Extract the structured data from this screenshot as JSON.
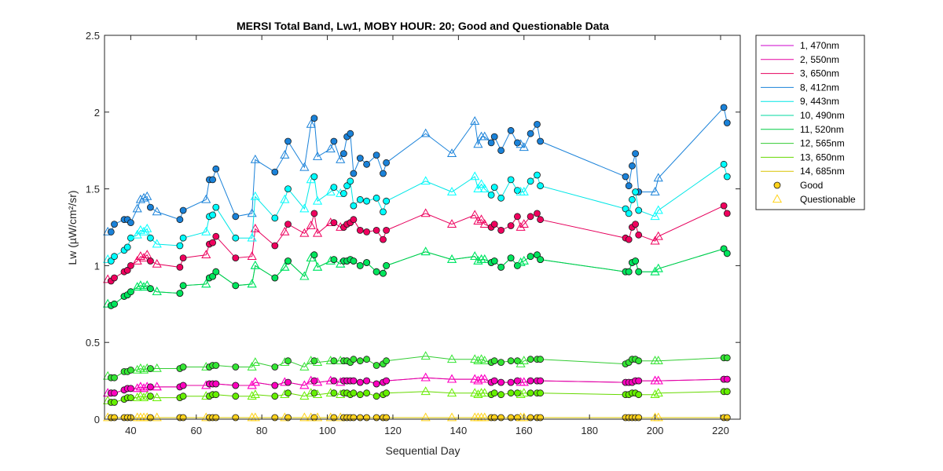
{
  "chart_data": {
    "type": "line",
    "title": "MERSI Total Band,  Lw1, MOBY HOUR: 20;  Good and Questionable Data",
    "xlabel": "Sequential Day",
    "ylabel": "Lw (µW/cm²/sr)",
    "xlim": [
      32,
      226
    ],
    "ylim": [
      0,
      2.5
    ],
    "xticks": [
      40,
      60,
      80,
      100,
      120,
      140,
      160,
      180,
      200,
      220
    ],
    "yticks": [
      0,
      0.5,
      1,
      1.5,
      2,
      2.5
    ],
    "ytick_labels": [
      "0",
      "0.5",
      "1",
      "1.5",
      "2",
      "2.5"
    ],
    "legend_position": "outside-top-right",
    "x": [
      33,
      34,
      35,
      38,
      39,
      40,
      42,
      43,
      44,
      45,
      46,
      48,
      55,
      56,
      63,
      64,
      65,
      66,
      72,
      77,
      78,
      84,
      87,
      88,
      93,
      95,
      96,
      97,
      101,
      102,
      104,
      105,
      106,
      107,
      108,
      110,
      112,
      115,
      117,
      118,
      130,
      138,
      145,
      146,
      147,
      148,
      150,
      151,
      153,
      156,
      158,
      159,
      160,
      162,
      164,
      165,
      191,
      192,
      193,
      194,
      195,
      200,
      201,
      221,
      222
    ],
    "quality": [
      "Q",
      "G",
      "G",
      "G",
      "G",
      "G",
      "Q",
      "Q",
      "Q",
      "Q",
      "G",
      "Q",
      "G",
      "G",
      "Q",
      "G",
      "G",
      "G",
      "G",
      "Q",
      "Q",
      "G",
      "Q",
      "G",
      "Q",
      "Q",
      "G",
      "Q",
      "Q",
      "G",
      "Q",
      "G",
      "G",
      "G",
      "G",
      "G",
      "G",
      "G",
      "G",
      "G",
      "Q",
      "Q",
      "Q",
      "Q",
      "Q",
      "Q",
      "G",
      "G",
      "G",
      "G",
      "G",
      "Q",
      "Q",
      "G",
      "G",
      "G",
      "G",
      "G",
      "G",
      "G",
      "G",
      "Q",
      "Q",
      "G",
      "G"
    ],
    "series": [
      {
        "name": "1, 470nm",
        "color": "#cc00cc",
        "marker": "#ff10ff",
        "values": [
          0.17,
          0.17,
          0.17,
          0.19,
          0.2,
          0.2,
          0.2,
          0.21,
          0.2,
          0.21,
          0.21,
          0.21,
          0.21,
          0.22,
          0.22,
          0.23,
          0.23,
          0.23,
          0.22,
          0.22,
          0.24,
          0.22,
          0.24,
          0.24,
          0.22,
          0.25,
          0.25,
          0.24,
          0.25,
          0.25,
          0.24,
          0.25,
          0.25,
          0.25,
          0.25,
          0.24,
          0.25,
          0.23,
          0.24,
          0.25,
          0.27,
          0.26,
          0.26,
          0.25,
          0.26,
          0.26,
          0.24,
          0.25,
          0.24,
          0.24,
          0.25,
          0.24,
          0.24,
          0.25,
          0.25,
          0.25,
          0.24,
          0.24,
          0.24,
          0.25,
          0.25,
          0.25,
          0.25,
          0.26,
          0.26
        ]
      },
      {
        "name": "2, 550nm",
        "color": "#e600a0",
        "marker": "#ff00bf",
        "values": [
          0.17,
          0.17,
          0.17,
          0.19,
          0.2,
          0.2,
          0.2,
          0.21,
          0.2,
          0.21,
          0.21,
          0.21,
          0.21,
          0.22,
          0.22,
          0.23,
          0.23,
          0.23,
          0.22,
          0.22,
          0.24,
          0.22,
          0.24,
          0.24,
          0.22,
          0.25,
          0.25,
          0.24,
          0.25,
          0.25,
          0.24,
          0.25,
          0.25,
          0.25,
          0.25,
          0.24,
          0.25,
          0.23,
          0.24,
          0.25,
          0.27,
          0.26,
          0.26,
          0.25,
          0.26,
          0.26,
          0.24,
          0.25,
          0.24,
          0.24,
          0.25,
          0.24,
          0.24,
          0.25,
          0.25,
          0.25,
          0.24,
          0.24,
          0.24,
          0.25,
          0.25,
          0.25,
          0.25,
          0.26,
          0.26
        ]
      },
      {
        "name": "3, 650nm",
        "color": "#e6005c",
        "marker": "#f0005e",
        "values": [
          0.91,
          0.9,
          0.92,
          0.96,
          0.97,
          1.0,
          1.03,
          1.06,
          1.05,
          1.07,
          1.03,
          1.01,
          0.99,
          1.05,
          1.07,
          1.14,
          1.15,
          1.19,
          1.05,
          1.06,
          1.24,
          1.13,
          1.22,
          1.27,
          1.21,
          1.26,
          1.34,
          1.21,
          1.28,
          1.28,
          1.25,
          1.25,
          1.27,
          1.28,
          1.3,
          1.23,
          1.22,
          1.23,
          1.17,
          1.23,
          1.34,
          1.27,
          1.33,
          1.29,
          1.3,
          1.27,
          1.25,
          1.27,
          1.23,
          1.26,
          1.32,
          1.25,
          1.27,
          1.32,
          1.34,
          1.3,
          1.18,
          1.17,
          1.25,
          1.27,
          1.2,
          1.16,
          1.19,
          1.39,
          1.34
        ]
      },
      {
        "name": "8, 412nm",
        "color": "#1a82d9",
        "marker": "#1a82d9",
        "values": [
          1.22,
          1.22,
          1.27,
          1.3,
          1.3,
          1.28,
          1.37,
          1.43,
          1.44,
          1.45,
          1.38,
          1.35,
          1.3,
          1.36,
          1.43,
          1.56,
          1.56,
          1.63,
          1.32,
          1.34,
          1.69,
          1.61,
          1.72,
          1.81,
          1.64,
          1.92,
          1.96,
          1.71,
          1.76,
          1.81,
          1.69,
          1.73,
          1.84,
          1.86,
          1.6,
          1.7,
          1.66,
          1.72,
          1.6,
          1.67,
          1.86,
          1.73,
          1.94,
          1.79,
          1.84,
          1.84,
          1.8,
          1.84,
          1.75,
          1.88,
          1.8,
          1.79,
          1.77,
          1.86,
          1.92,
          1.81,
          1.58,
          1.52,
          1.65,
          1.73,
          1.48,
          1.48,
          1.57,
          2.03,
          1.93
        ]
      },
      {
        "name": "9, 443nm",
        "color": "#00e6e6",
        "marker": "#00ffff",
        "values": [
          1.04,
          1.03,
          1.06,
          1.1,
          1.12,
          1.18,
          1.2,
          1.23,
          1.22,
          1.24,
          1.18,
          1.14,
          1.13,
          1.18,
          1.22,
          1.32,
          1.33,
          1.38,
          1.18,
          1.18,
          1.45,
          1.31,
          1.43,
          1.5,
          1.37,
          1.56,
          1.58,
          1.42,
          1.48,
          1.51,
          1.47,
          1.47,
          1.52,
          1.55,
          1.39,
          1.43,
          1.42,
          1.44,
          1.35,
          1.42,
          1.55,
          1.48,
          1.58,
          1.5,
          1.53,
          1.5,
          1.46,
          1.51,
          1.44,
          1.56,
          1.49,
          1.48,
          1.48,
          1.55,
          1.59,
          1.52,
          1.37,
          1.34,
          1.43,
          1.48,
          1.36,
          1.32,
          1.36,
          1.66,
          1.58
        ]
      },
      {
        "name": "10, 490nm",
        "color": "#00d9a0",
        "marker": "#00e6a8",
        "values": [
          0.75,
          0.74,
          0.75,
          0.8,
          0.81,
          0.83,
          0.86,
          0.87,
          0.86,
          0.87,
          0.85,
          0.83,
          0.82,
          0.87,
          0.88,
          0.92,
          0.93,
          0.96,
          0.87,
          0.88,
          1.0,
          0.92,
          0.99,
          1.03,
          0.93,
          1.05,
          1.07,
          0.99,
          1.03,
          1.04,
          1.01,
          1.03,
          1.03,
          1.04,
          1.03,
          1.0,
          1.02,
          0.96,
          0.95,
          1.0,
          1.09,
          1.04,
          1.06,
          1.03,
          1.04,
          1.04,
          1.02,
          1.03,
          0.99,
          1.05,
          1.0,
          1.02,
          1.03,
          1.06,
          1.07,
          1.04,
          0.96,
          0.96,
          1.02,
          1.03,
          0.96,
          0.96,
          0.98,
          1.11,
          1.08
        ]
      },
      {
        "name": "11, 520nm",
        "color": "#00cc44",
        "marker": "#00e65c",
        "values": [
          0.75,
          0.74,
          0.75,
          0.8,
          0.81,
          0.83,
          0.86,
          0.87,
          0.86,
          0.87,
          0.85,
          0.83,
          0.82,
          0.87,
          0.88,
          0.92,
          0.93,
          0.96,
          0.87,
          0.88,
          1.0,
          0.92,
          0.99,
          1.03,
          0.93,
          1.05,
          1.07,
          0.99,
          1.03,
          1.04,
          1.01,
          1.03,
          1.03,
          1.04,
          1.03,
          1.0,
          1.02,
          0.96,
          0.95,
          1.0,
          1.09,
          1.04,
          1.06,
          1.03,
          1.04,
          1.04,
          1.02,
          1.03,
          0.99,
          1.05,
          1.0,
          1.02,
          1.03,
          1.06,
          1.07,
          1.04,
          0.96,
          0.96,
          1.02,
          1.03,
          0.96,
          0.96,
          0.98,
          1.11,
          1.08
        ]
      },
      {
        "name": "12, 565nm",
        "color": "#33cc33",
        "marker": "#33e633",
        "values": [
          0.28,
          0.27,
          0.27,
          0.31,
          0.31,
          0.32,
          0.32,
          0.33,
          0.32,
          0.33,
          0.33,
          0.33,
          0.33,
          0.34,
          0.34,
          0.34,
          0.35,
          0.35,
          0.34,
          0.34,
          0.37,
          0.34,
          0.37,
          0.38,
          0.34,
          0.38,
          0.38,
          0.37,
          0.38,
          0.38,
          0.38,
          0.38,
          0.38,
          0.37,
          0.39,
          0.38,
          0.39,
          0.35,
          0.36,
          0.38,
          0.41,
          0.39,
          0.39,
          0.38,
          0.39,
          0.38,
          0.37,
          0.38,
          0.37,
          0.38,
          0.38,
          0.36,
          0.38,
          0.39,
          0.39,
          0.39,
          0.36,
          0.37,
          0.39,
          0.39,
          0.38,
          0.38,
          0.38,
          0.4,
          0.4
        ]
      },
      {
        "name": "13, 650nm",
        "color": "#66d900",
        "marker": "#66f000",
        "values": [
          0.12,
          0.11,
          0.11,
          0.13,
          0.14,
          0.14,
          0.14,
          0.15,
          0.14,
          0.15,
          0.15,
          0.14,
          0.14,
          0.15,
          0.15,
          0.15,
          0.16,
          0.16,
          0.15,
          0.15,
          0.16,
          0.15,
          0.16,
          0.17,
          0.15,
          0.17,
          0.17,
          0.16,
          0.17,
          0.17,
          0.16,
          0.17,
          0.17,
          0.16,
          0.17,
          0.16,
          0.17,
          0.15,
          0.16,
          0.17,
          0.18,
          0.17,
          0.17,
          0.16,
          0.17,
          0.17,
          0.16,
          0.17,
          0.16,
          0.17,
          0.17,
          0.16,
          0.17,
          0.17,
          0.17,
          0.17,
          0.16,
          0.16,
          0.17,
          0.17,
          0.16,
          0.16,
          0.17,
          0.18,
          0.18
        ]
      },
      {
        "name": "14, 685nm",
        "color": "#d9c400",
        "marker": "#ffd21a",
        "values": [
          0.01,
          0.01,
          0.01,
          0.01,
          0.01,
          0.01,
          0.01,
          0.01,
          0.01,
          0.01,
          0.01,
          0.01,
          0.01,
          0.01,
          0.01,
          0.01,
          0.01,
          0.01,
          0.01,
          0.01,
          0.01,
          0.01,
          0.01,
          0.01,
          0.01,
          0.01,
          0.01,
          0.01,
          0.01,
          0.01,
          0.01,
          0.01,
          0.01,
          0.01,
          0.01,
          0.01,
          0.01,
          0.01,
          0.01,
          0.01,
          0.01,
          0.01,
          0.01,
          0.01,
          0.01,
          0.01,
          0.01,
          0.01,
          0.01,
          0.01,
          0.01,
          0.01,
          0.01,
          0.01,
          0.01,
          0.01,
          0.01,
          0.01,
          0.01,
          0.01,
          0.01,
          0.01,
          0.01,
          0.01,
          0.01
        ]
      }
    ],
    "legend": {
      "good_label": "Good",
      "questionable_label": "Questionable"
    }
  }
}
